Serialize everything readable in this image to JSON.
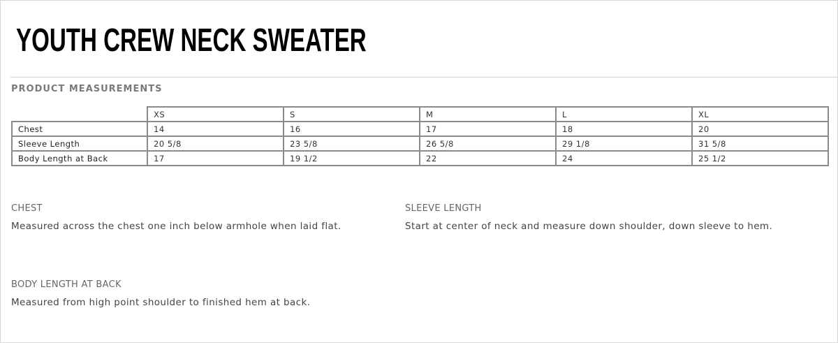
{
  "title": "YOUTH CREW NECK SWEATER",
  "subtitle": "PRODUCT MEASUREMENTS",
  "table": {
    "headers": [
      "XS",
      "S",
      "M",
      "L",
      "XL"
    ],
    "rows": [
      {
        "label": "Chest",
        "values": [
          "14",
          "16",
          "17",
          "18",
          "20"
        ]
      },
      {
        "label": "Sleeve Length",
        "values": [
          "20 5/8",
          "23 5/8",
          "26 5/8",
          "29 1/8",
          "31 5/8"
        ]
      },
      {
        "label": "Body Length at Back",
        "values": [
          "17",
          "19 1/2",
          "22",
          "24",
          "25 1/2"
        ]
      }
    ]
  },
  "notes": {
    "chest": {
      "heading": "CHEST",
      "text": "Measured across the chest one inch below armhole when laid flat."
    },
    "sleeve": {
      "heading": "SLEEVE LENGTH",
      "text": "Start at center of neck and measure down shoulder, down sleeve to hem."
    },
    "body": {
      "heading": "BODY LENGTH AT BACK",
      "text": "Measured from high point shoulder to finished hem at back."
    }
  }
}
